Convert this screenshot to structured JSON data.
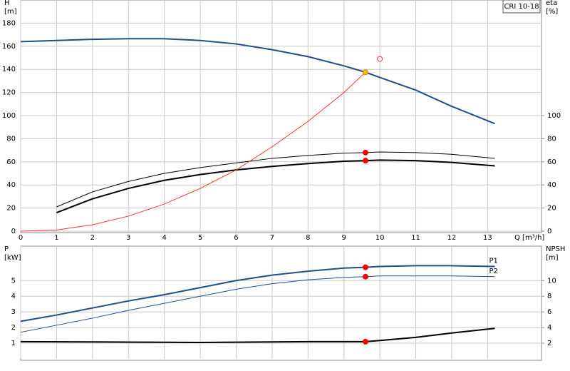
{
  "chart_data": [
    {
      "type": "line",
      "label": "CRI 10-18",
      "xlabel": "Q [m³/h]",
      "ylabel": [
        "H",
        "[m]"
      ],
      "y2label": [
        "eta",
        "[%]"
      ],
      "xlim": [
        0,
        14.5
      ],
      "xticks": [
        0,
        1,
        2,
        3,
        4,
        5,
        6,
        7,
        8,
        9,
        10,
        11,
        12,
        13
      ],
      "ylim": [
        0,
        200
      ],
      "yticks": [
        0,
        20,
        40,
        60,
        80,
        100,
        120,
        140,
        160,
        180
      ],
      "y2lim": [
        0,
        200
      ],
      "y2ticks": [
        0,
        20,
        40,
        60,
        80,
        100
      ],
      "grid": true,
      "series": [
        {
          "color": "#1f4e8c",
          "width": 2,
          "x": [
            0,
            1,
            2,
            3,
            4,
            5,
            6,
            7,
            8,
            9,
            9.6,
            10,
            11,
            12,
            13.2
          ],
          "values": [
            164,
            165,
            166,
            166.5,
            166.5,
            165,
            162,
            157,
            151,
            143,
            137.5,
            133,
            122,
            108,
            93
          ]
        },
        {
          "color": "#000000",
          "width": 1,
          "axis": "y2",
          "x": [
            1,
            2,
            3,
            4,
            5,
            6,
            7,
            8,
            9,
            9.6,
            10,
            11,
            12,
            13.2
          ],
          "values": [
            21,
            34,
            43,
            50,
            55,
            59,
            63,
            65.5,
            67.5,
            68,
            68.5,
            68,
            66.5,
            63
          ]
        },
        {
          "color": "#000000",
          "width": 2,
          "axis": "y2",
          "x": [
            1,
            2,
            3,
            4,
            5,
            6,
            7,
            8,
            9,
            9.6,
            10,
            11,
            12,
            13.2
          ],
          "values": [
            16,
            28,
            37,
            44,
            49,
            53,
            56,
            58.5,
            60.5,
            61,
            61.5,
            61,
            59.5,
            56.5
          ]
        },
        {
          "color": "#ff3333",
          "width": 1,
          "x": [
            0,
            1,
            2,
            3,
            4,
            5,
            6,
            7,
            8,
            9,
            9.6
          ],
          "values": [
            0,
            1,
            5.5,
            13,
            23.5,
            37,
            53,
            73,
            95,
            120,
            137.5
          ]
        }
      ],
      "points": [
        {
          "x": 9.6,
          "y": 137.5,
          "color": "#f5c400",
          "style": "filled"
        },
        {
          "x": 10,
          "y": 149,
          "color": "#ff3333",
          "style": "open"
        },
        {
          "x": 9.6,
          "y": 68,
          "color": "#ff0000",
          "style": "filled",
          "axis": "y2"
        },
        {
          "x": 9.6,
          "y": 61,
          "color": "#ff0000",
          "style": "filled",
          "axis": "y2"
        }
      ]
    },
    {
      "type": "line",
      "ylabel": [
        "P",
        "[kW]"
      ],
      "y2label": [
        "NPSH",
        "[m]"
      ],
      "xlim": [
        0,
        14.5
      ],
      "xticks": [
        0,
        1,
        2,
        3,
        4,
        5,
        6,
        7,
        8,
        9,
        10,
        11,
        12,
        13
      ],
      "ylim": [
        0,
        7.2
      ],
      "yticks": [
        1,
        2,
        3,
        4,
        5
      ],
      "y2lim": [
        0,
        14.4
      ],
      "y2ticks": [
        2,
        4,
        6,
        8,
        10
      ],
      "grid": true,
      "series": [
        {
          "name": "P1",
          "color": "#1f4e8c",
          "width": 2,
          "x": [
            0,
            1,
            2,
            3,
            4,
            5,
            6,
            7,
            8,
            9,
            9.6,
            10,
            11,
            12,
            13.2
          ],
          "values": [
            2.4,
            2.8,
            3.25,
            3.7,
            4.1,
            4.55,
            5.0,
            5.35,
            5.6,
            5.8,
            5.85,
            5.9,
            5.95,
            5.95,
            5.9
          ]
        },
        {
          "name": "P2",
          "color": "#1f4e8c",
          "width": 1,
          "x": [
            0,
            1,
            2,
            3,
            4,
            5,
            6,
            7,
            8,
            9,
            9.6,
            10,
            11,
            12,
            13.2
          ],
          "values": [
            1.7,
            2.15,
            2.6,
            3.1,
            3.55,
            4.0,
            4.45,
            4.8,
            5.05,
            5.2,
            5.25,
            5.3,
            5.3,
            5.3,
            5.25
          ]
        },
        {
          "color": "#000000",
          "width": 2,
          "axis": "y2",
          "x": [
            0,
            5,
            8,
            9.6,
            10,
            11,
            12,
            13.2
          ],
          "values": [
            2.2,
            2.1,
            2.2,
            2.2,
            2.35,
            2.75,
            3.3,
            3.9
          ]
        }
      ],
      "points": [
        {
          "x": 9.6,
          "y": 5.85,
          "color": "#ff0000",
          "style": "filled"
        },
        {
          "x": 9.6,
          "y": 5.25,
          "color": "#ff0000",
          "style": "filled"
        },
        {
          "x": 9.6,
          "y": 2.2,
          "color": "#ff0000",
          "style": "filled",
          "axis": "y2"
        }
      ]
    }
  ]
}
